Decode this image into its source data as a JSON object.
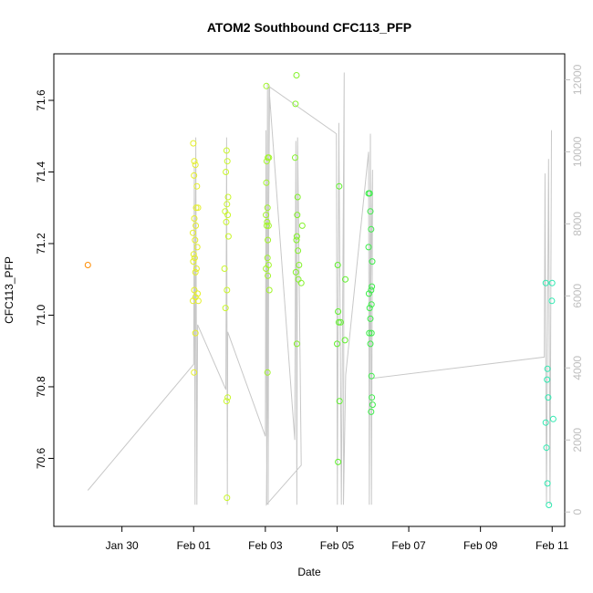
{
  "chart_data": {
    "type": "scatter",
    "title": "ATOM2 Southbound CFC113_PFP",
    "xlabel": "Date",
    "ylabel": "CFC113_PFP",
    "x_axis": {
      "unit": "days since Jan 30",
      "range": [
        -1.9,
        12.35
      ],
      "ticks": [
        {
          "value": 0,
          "label": "Jan 30"
        },
        {
          "value": 2,
          "label": "Feb 01"
        },
        {
          "value": 4,
          "label": "Feb 03"
        },
        {
          "value": 6,
          "label": "Feb 05"
        },
        {
          "value": 8,
          "label": "Feb 07"
        },
        {
          "value": 10,
          "label": "Feb 09"
        },
        {
          "value": 12,
          "label": "Feb 11"
        }
      ]
    },
    "y_axis": {
      "range": [
        70.41,
        71.73
      ],
      "ticks": [
        "70.6",
        "70.8",
        "71.0",
        "71.2",
        "71.4",
        "71.6"
      ]
    },
    "y2_axis": {
      "label_color": "#bebebe",
      "range": [
        -400,
        12720
      ],
      "ticks": [
        "0",
        "2000",
        "4000",
        "6000",
        "8000",
        "10000",
        "12000"
      ]
    },
    "grid": false,
    "legend": "none",
    "series": [
      {
        "color": "#ff8c00",
        "points": [
          [
            -0.95,
            71.14
          ]
        ]
      },
      {
        "color": "#e5ef2a",
        "points": [
          [
            1.99,
            71.48
          ],
          [
            2.02,
            71.43
          ],
          [
            2.05,
            71.42
          ],
          [
            2.01,
            71.39
          ],
          [
            2.09,
            71.36
          ],
          [
            2.07,
            71.3
          ],
          [
            2.02,
            71.27
          ],
          [
            2.06,
            71.25
          ],
          [
            1.98,
            71.23
          ],
          [
            2.04,
            71.21
          ],
          [
            2.1,
            71.19
          ],
          [
            2.0,
            71.17
          ],
          [
            2.03,
            71.16
          ],
          [
            1.99,
            71.15
          ],
          [
            2.08,
            71.13
          ],
          [
            2.05,
            71.12
          ],
          [
            2.02,
            71.07
          ],
          [
            2.11,
            71.06
          ],
          [
            2.05,
            71.05
          ],
          [
            1.98,
            71.04
          ],
          [
            2.13,
            71.04
          ],
          [
            2.05,
            70.95
          ],
          [
            2.01,
            70.84
          ],
          [
            2.12,
            71.3
          ]
        ]
      },
      {
        "color": "#caf72a",
        "points": [
          [
            2.92,
            71.46
          ],
          [
            2.94,
            71.43
          ],
          [
            2.9,
            71.4
          ],
          [
            2.96,
            71.33
          ],
          [
            2.93,
            71.31
          ],
          [
            2.88,
            71.29
          ],
          [
            2.95,
            71.28
          ],
          [
            2.91,
            71.26
          ],
          [
            2.97,
            71.22
          ],
          [
            2.86,
            71.13
          ],
          [
            2.93,
            71.07
          ],
          [
            2.89,
            71.02
          ],
          [
            2.95,
            70.77
          ],
          [
            2.92,
            70.76
          ],
          [
            2.93,
            70.49
          ]
        ]
      },
      {
        "color": "#a2f52a",
        "points": [
          [
            4.03,
            71.64
          ],
          [
            4.1,
            71.44
          ],
          [
            4.07,
            71.44
          ],
          [
            4.04,
            71.43
          ],
          [
            4.03,
            71.37
          ],
          [
            4.06,
            71.3
          ],
          [
            4.02,
            71.28
          ],
          [
            4.05,
            71.26
          ],
          [
            4.09,
            71.25
          ],
          [
            4.04,
            71.25
          ],
          [
            4.07,
            71.21
          ],
          [
            4.06,
            71.16
          ],
          [
            4.09,
            71.14
          ],
          [
            4.02,
            71.13
          ],
          [
            4.07,
            71.11
          ],
          [
            4.11,
            71.07
          ],
          [
            4.06,
            70.84
          ]
        ]
      },
      {
        "color": "#84f22a",
        "points": [
          [
            4.87,
            71.67
          ],
          [
            4.84,
            71.59
          ],
          [
            4.83,
            71.44
          ],
          [
            4.9,
            71.33
          ],
          [
            4.89,
            71.28
          ],
          [
            5.03,
            71.25
          ],
          [
            4.88,
            71.22
          ],
          [
            4.87,
            71.21
          ],
          [
            4.91,
            71.18
          ],
          [
            4.94,
            71.14
          ],
          [
            4.85,
            71.12
          ],
          [
            4.92,
            71.1
          ],
          [
            5.0,
            71.09
          ],
          [
            4.88,
            70.92
          ]
        ]
      },
      {
        "color": "#5df02a",
        "points": [
          [
            6.06,
            71.36
          ],
          [
            6.02,
            71.14
          ],
          [
            6.23,
            71.1
          ],
          [
            6.03,
            71.01
          ],
          [
            6.05,
            70.98
          ],
          [
            6.1,
            70.98
          ],
          [
            6.22,
            70.93
          ],
          [
            6.0,
            70.92
          ],
          [
            6.07,
            70.76
          ],
          [
            6.03,
            70.59
          ]
        ]
      },
      {
        "color": "#3ded4a",
        "points": [
          [
            6.88,
            71.34
          ],
          [
            6.91,
            71.34
          ],
          [
            6.93,
            71.29
          ],
          [
            6.95,
            71.24
          ],
          [
            6.88,
            71.19
          ],
          [
            6.98,
            71.15
          ],
          [
            6.97,
            71.08
          ],
          [
            6.95,
            71.07
          ],
          [
            6.89,
            71.06
          ],
          [
            6.96,
            71.03
          ],
          [
            6.91,
            71.02
          ],
          [
            6.93,
            70.99
          ],
          [
            6.96,
            70.95
          ],
          [
            6.9,
            70.95
          ],
          [
            6.93,
            70.92
          ],
          [
            6.96,
            70.83
          ],
          [
            6.97,
            70.77
          ],
          [
            6.99,
            70.75
          ],
          [
            6.95,
            70.73
          ]
        ]
      },
      {
        "color": "#2fe9b0",
        "points": [
          [
            11.82,
            71.09
          ],
          [
            12.0,
            71.09
          ],
          [
            11.99,
            71.04
          ],
          [
            11.87,
            70.85
          ],
          [
            11.86,
            70.82
          ],
          [
            11.89,
            70.77
          ],
          [
            12.03,
            70.71
          ],
          [
            11.82,
            70.7
          ],
          [
            11.84,
            70.63
          ],
          [
            11.87,
            70.53
          ],
          [
            11.91,
            70.47
          ]
        ]
      }
    ],
    "secondary_line": {
      "color": "#c8c8c8",
      "axis": "y2",
      "description_values": "altitude profile on right axis",
      "points": [
        [
          -0.95,
          600
        ],
        [
          2.0,
          4100
        ],
        [
          2.02,
          9600
        ],
        [
          2.04,
          200
        ],
        [
          2.06,
          10400
        ],
        [
          2.09,
          200
        ],
        [
          2.11,
          5200
        ],
        [
          2.9,
          3400
        ],
        [
          2.92,
          10400
        ],
        [
          2.94,
          200
        ],
        [
          2.95,
          5000
        ],
        [
          4.0,
          2100
        ],
        [
          4.02,
          10600
        ],
        [
          4.04,
          200
        ],
        [
          4.06,
          11900
        ],
        [
          4.08,
          200
        ],
        [
          4.1,
          11800
        ],
        [
          4.82,
          2000
        ],
        [
          4.85,
          10300
        ],
        [
          4.88,
          200
        ],
        [
          4.9,
          10400
        ],
        [
          5.0,
          1300
        ],
        [
          5.0,
          1300
        ],
        [
          4.03,
          200
        ],
        [
          4.12,
          11800
        ],
        [
          5.98,
          10500
        ],
        [
          6.01,
          200
        ],
        [
          6.05,
          10800
        ],
        [
          6.12,
          200
        ],
        [
          6.2,
          12200
        ],
        [
          6.18,
          200
        ],
        [
          6.24,
          3800
        ],
        [
          6.88,
          10000
        ],
        [
          6.9,
          200
        ],
        [
          6.93,
          10500
        ],
        [
          6.96,
          200
        ],
        [
          6.99,
          9500
        ],
        [
          6.9,
          3700
        ],
        [
          11.78,
          4300
        ],
        [
          11.8,
          9400
        ],
        [
          11.84,
          200
        ],
        [
          11.9,
          9800
        ],
        [
          11.94,
          200
        ],
        [
          11.98,
          10600
        ]
      ]
    }
  }
}
